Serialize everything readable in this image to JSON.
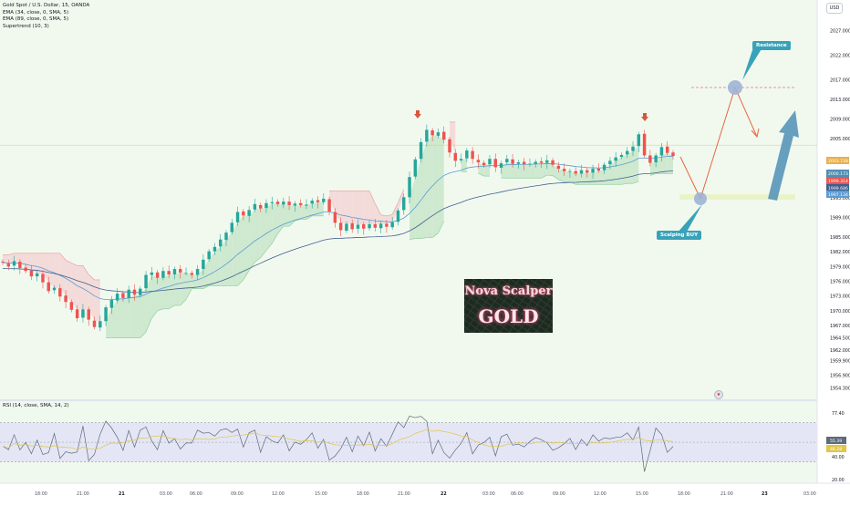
{
  "header": {
    "legend": [
      "Gold Spot / U.S. Dollar, 15, OANDA",
      "EMA (34, close, 0, SMA, 5)",
      "EMA (89, close, 0, SMA, 5)",
      "Supertrend (10, 3)"
    ],
    "currency_button": "USD"
  },
  "rsi_legend": "RSI (14, close, SMA, 14, 2)",
  "logo": {
    "line1": "Nova Scalper",
    "line2": "GOLD"
  },
  "annotations": {
    "resistance": "Resistance",
    "scalping_buy": "Scalping BUY"
  },
  "colors": {
    "bull": "#26a69a",
    "bear": "#ef5350",
    "supertrend_up": "#c8e6c9",
    "supertrend_down": "#f3d6d6",
    "ema34": "#5b9bd5",
    "ema89": "#3f5f8f",
    "callout": "#3aa2b8",
    "rsi_line": "#5d6b7a",
    "rsi_ma": "#e0c64a",
    "zone": "#e9f2c2"
  },
  "chart_data": [
    {
      "type": "candlestick",
      "title": "Gold Spot / U.S. Dollar, 15, OANDA",
      "y_axis_ticks": [
        "2027.000",
        "2022.000",
        "2017.000",
        "2013.000",
        "2009.000",
        "2005.000",
        "1993.000",
        "1989.000",
        "1985.000",
        "1982.000",
        "1979.000",
        "1976.000",
        "1973.000",
        "1970.000",
        "1967.000",
        "1964.500",
        "1962.000",
        "1959.900",
        "1956.900",
        "1954.300"
      ],
      "price_labels": [
        "2003.728",
        "2000.173",
        "1999.314",
        "1999.686",
        "1997.134"
      ],
      "x_axis_ticks": [
        "18:00",
        "21:00",
        "21",
        "03:00",
        "06:00",
        "09:00",
        "12:00",
        "15:00",
        "18:00",
        "21:00",
        "22",
        "03:00",
        "06:00",
        "09:00",
        "12:00",
        "15:00",
        "18:00",
        "21:00",
        "23",
        "03:00"
      ],
      "price_points": [
        [
          1980.0,
          1979.8
        ],
        [
          1979.6,
          1979.0
        ],
        [
          1979.2,
          1980.1
        ],
        [
          1980.0,
          1978.7
        ],
        [
          1978.8,
          1978.1
        ],
        [
          1978.2,
          1977.0
        ],
        [
          1977.0,
          1977.6
        ],
        [
          1977.5,
          1975.8
        ],
        [
          1975.8,
          1974.0
        ],
        [
          1974.2,
          1974.7
        ],
        [
          1974.6,
          1972.9
        ],
        [
          1973.1,
          1971.8
        ],
        [
          1971.8,
          1970.2
        ],
        [
          1970.3,
          1968.5
        ],
        [
          1968.6,
          1970.3
        ],
        [
          1970.3,
          1968.2
        ],
        [
          1968.0,
          1966.7
        ],
        [
          1966.6,
          1967.9
        ],
        [
          1967.9,
          1970.7
        ],
        [
          1970.6,
          1972.2
        ],
        [
          1972.1,
          1973.5
        ],
        [
          1973.6,
          1972.6
        ],
        [
          1972.6,
          1974.3
        ],
        [
          1974.3,
          1973.3
        ],
        [
          1973.2,
          1974.5
        ],
        [
          1974.6,
          1977.3
        ],
        [
          1977.3,
          1977.8
        ],
        [
          1977.8,
          1976.7
        ],
        [
          1976.7,
          1978.1
        ],
        [
          1978.1,
          1977.4
        ],
        [
          1977.4,
          1978.5
        ],
        [
          1978.5,
          1977.8
        ],
        [
          1977.7,
          1977.7
        ],
        [
          1977.7,
          1977.3
        ],
        [
          1977.3,
          1978.5
        ],
        [
          1978.5,
          1980.4
        ],
        [
          1980.5,
          1982.1
        ],
        [
          1982.1,
          1983.0
        ],
        [
          1983.1,
          1984.5
        ],
        [
          1984.4,
          1985.9
        ],
        [
          1986.0,
          1987.9
        ],
        [
          1988.0,
          1990.1
        ],
        [
          1990.2,
          1989.4
        ],
        [
          1989.3,
          1990.5
        ],
        [
          1990.6,
          1991.7
        ],
        [
          1991.5,
          1990.8
        ],
        [
          1990.9,
          1991.9
        ],
        [
          1991.9,
          1992.1
        ],
        [
          1992.2,
          1991.7
        ],
        [
          1991.6,
          1992.2
        ],
        [
          1992.2,
          1991.5
        ],
        [
          1991.4,
          1991.8
        ],
        [
          1991.9,
          1991.5
        ],
        [
          1991.4,
          1991.6
        ],
        [
          1991.8,
          1992.4
        ],
        [
          1992.5,
          1992.1
        ],
        [
          1992.1,
          1992.8
        ],
        [
          1992.7,
          1990.2
        ],
        [
          1990.1,
          1987.9
        ],
        [
          1987.9,
          1986.4
        ],
        [
          1986.3,
          1987.7
        ],
        [
          1987.8,
          1986.6
        ],
        [
          1986.7,
          1987.5
        ],
        [
          1987.6,
          1986.7
        ],
        [
          1986.8,
          1987.6
        ],
        [
          1987.6,
          1986.9
        ],
        [
          1986.8,
          1987.7
        ],
        [
          1987.7,
          1987.1
        ],
        [
          1987.0,
          1988.0
        ],
        [
          1988.1,
          1990.4
        ],
        [
          1990.5,
          1993.1
        ],
        [
          1993.1,
          1997.2
        ],
        [
          1997.3,
          2000.8
        ],
        [
          2000.9,
          2004.3
        ],
        [
          2004.4,
          2006.8
        ],
        [
          2006.7,
          2005.7
        ],
        [
          2005.6,
          2006.3
        ],
        [
          2006.4,
          2004.8
        ],
        [
          2004.9,
          2002.2
        ],
        [
          2002.1,
          2000.5
        ],
        [
          2000.6,
          2000.9
        ],
        [
          2001.0,
          2002.6
        ],
        [
          2002.5,
          2000.9
        ],
        [
          2000.7,
          2000.2
        ],
        [
          2000.1,
          1999.6
        ],
        [
          1999.8,
          2000.9
        ],
        [
          2000.9,
          1999.2
        ],
        [
          1999.1,
          2000.0
        ],
        [
          2000.2,
          2000.9
        ],
        [
          2000.8,
          1999.9
        ],
        [
          1999.9,
          2000.2
        ],
        [
          2000.3,
          1999.8
        ],
        [
          1999.8,
          1999.9
        ],
        [
          1999.9,
          2000.3
        ],
        [
          2000.4,
          2000.1
        ],
        [
          2000.1,
          2000.6
        ],
        [
          2000.6,
          1999.7
        ],
        [
          1999.5,
          1998.9
        ],
        [
          1998.9,
          1998.4
        ],
        [
          1998.3,
          1998.4
        ],
        [
          1998.4,
          1997.9
        ],
        [
          1997.9,
          1998.6
        ],
        [
          1998.6,
          1998.1
        ],
        [
          1998.1,
          1998.9
        ],
        [
          1998.9,
          1998.5
        ],
        [
          1998.6,
          1999.7
        ],
        [
          1999.8,
          2000.5
        ],
        [
          2000.5,
          2001.2
        ],
        [
          2001.3,
          2001.7
        ],
        [
          2001.8,
          2002.5
        ],
        [
          2002.5,
          2003.4
        ],
        [
          2003.5,
          2005.9
        ],
        [
          2006.0,
          2001.6
        ],
        [
          2001.6,
          2000.1
        ],
        [
          2000.2,
          2001.6
        ],
        [
          2001.6,
          2003.3
        ],
        [
          2003.4,
          2002.1
        ],
        [
          2002.2,
          2001.5
        ]
      ]
    },
    {
      "type": "line",
      "title": "RSI (14, close, SMA, 14, 2)",
      "y_axis_ticks": [
        "77.40",
        "48.28",
        "40.00",
        "20.00"
      ],
      "value_labels": [
        "55.39",
        "48.28"
      ]
    }
  ]
}
